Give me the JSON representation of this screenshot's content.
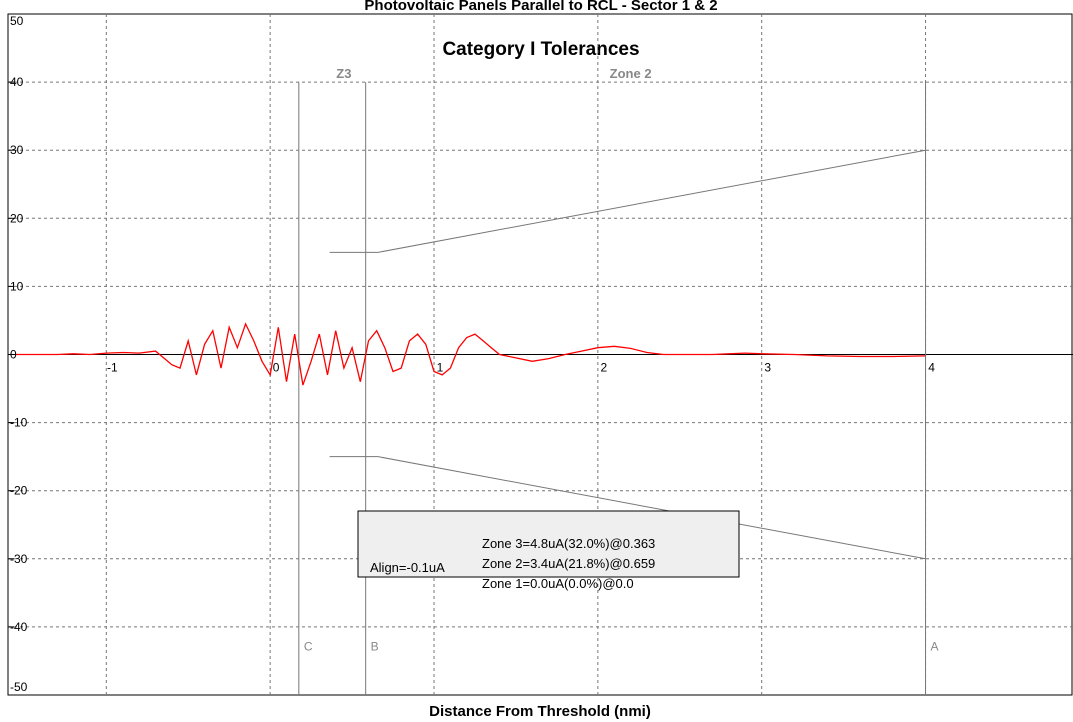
{
  "chart_data": {
    "type": "line",
    "title": "Photovoltaic Panels Parallel to RCL - Sector 1 & 2",
    "subtitle": "Category I Tolerances",
    "xlabel": "Distance From Threshold (nmi)",
    "ylabel": "",
    "xlim": [
      -1.6,
      4.9
    ],
    "ylim": [
      -50,
      50
    ],
    "grid": true,
    "x_ticks": [
      "-1",
      "0",
      "1",
      "2",
      "3",
      "4"
    ],
    "y_ticks": [
      "50",
      "40",
      "30",
      "20",
      "10",
      "0",
      "-10",
      "-20",
      "-30",
      "-40",
      "-50"
    ],
    "series": [
      {
        "color": "#ff0000",
        "x": [
          -1.55,
          -1.4,
          -1.3,
          -1.2,
          -1.1,
          -1.0,
          -0.9,
          -0.8,
          -0.7,
          -0.65,
          -0.6,
          -0.55,
          -0.5,
          -0.45,
          -0.4,
          -0.35,
          -0.3,
          -0.25,
          -0.2,
          -0.15,
          -0.1,
          -0.05,
          0.0,
          0.05,
          0.1,
          0.15,
          0.2,
          0.25,
          0.3,
          0.35,
          0.4,
          0.45,
          0.5,
          0.55,
          0.6,
          0.65,
          0.7,
          0.75,
          0.8,
          0.85,
          0.9,
          0.95,
          1.0,
          1.05,
          1.1,
          1.15,
          1.2,
          1.25,
          1.3,
          1.35,
          1.4,
          1.5,
          1.6,
          1.7,
          1.8,
          1.9,
          2.0,
          2.1,
          2.2,
          2.3,
          2.4,
          2.5,
          2.6,
          2.7,
          2.8,
          2.9,
          3.0,
          3.2,
          3.4,
          3.6,
          3.8,
          4.0
        ],
        "y": [
          0,
          0,
          0,
          0.1,
          0,
          0.2,
          0.3,
          0.2,
          0.5,
          -0.5,
          -1.5,
          -2,
          2,
          -3,
          1.5,
          3.5,
          -2,
          4,
          1,
          4.5,
          2,
          -1,
          -3,
          4,
          -4,
          3,
          -4.5,
          -1,
          3,
          -3,
          3.5,
          -2,
          1,
          -4,
          2,
          3.5,
          1,
          -2.5,
          -2,
          2,
          3,
          1.5,
          -2.5,
          -3,
          -2,
          1,
          2.5,
          3,
          2,
          1,
          0,
          -0.5,
          -1,
          -0.6,
          0,
          0.5,
          1,
          1.2,
          0.9,
          0.3,
          0,
          0,
          0,
          0,
          0.1,
          0.2,
          0.1,
          0,
          -0.2,
          -0.3,
          -0.3,
          -0.2
        ]
      }
    ],
    "tolerance_upper": {
      "x": [
        0.363,
        0.659,
        4
      ],
      "y": [
        15,
        15,
        30
      ]
    },
    "tolerance_lower": {
      "x": [
        0.363,
        0.659,
        4
      ],
      "y": [
        -15,
        -15,
        -30
      ]
    },
    "zone_boundaries": [
      {
        "x": 0.175,
        "label": "C"
      },
      {
        "x": 0.583,
        "label": "B"
      },
      {
        "x": 4.0,
        "label": "A"
      }
    ],
    "zone_labels": [
      {
        "text": "Z3",
        "x": 0.45
      },
      {
        "text": "Zone 2",
        "x": 2.2
      }
    ],
    "stats_box": {
      "align": "Align=-0.1uA",
      "zone3": "Zone 3=4.8uA(32.0%)@0.363",
      "zone2": "Zone 2=3.4uA(21.8%)@0.659",
      "zone1": "Zone 1=0.0uA(0.0%)@0.0"
    }
  }
}
